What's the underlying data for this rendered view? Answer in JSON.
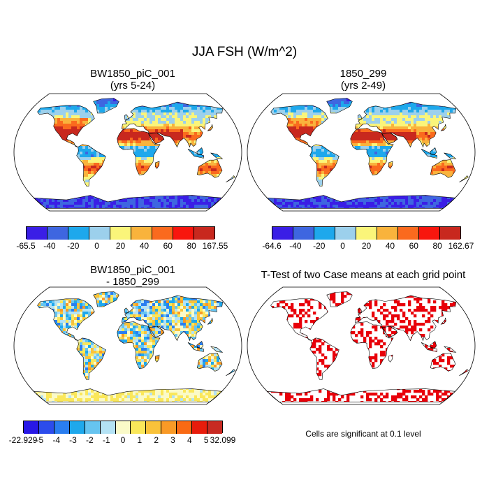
{
  "title": "JJA FSH (W/m^2)",
  "panels": [
    {
      "title_line1": "BW1850_piC_001",
      "title_line2": "(yrs 5-24)",
      "colorbar": {
        "labels": [
          "-65.5",
          "-40",
          "-20",
          "0",
          "20",
          "40",
          "60",
          "80",
          "167.55"
        ],
        "colors": [
          "#3a1ee6",
          "#3e66e0",
          "#1ea8ec",
          "#9cd0ec",
          "#faf57a",
          "#f9b33c",
          "#fa6a1e",
          "#f8160e",
          "#c8281e"
        ]
      }
    },
    {
      "title_line1": "1850_299",
      "title_line2": "(yrs 2-49)",
      "colorbar": {
        "labels": [
          "-64.6",
          "-40",
          "-20",
          "0",
          "20",
          "40",
          "60",
          "80",
          "162.67"
        ],
        "colors": [
          "#3a1ee6",
          "#3e66e0",
          "#1ea8ec",
          "#9cd0ec",
          "#faf57a",
          "#f9b33c",
          "#fa6a1e",
          "#f8160e",
          "#c8281e"
        ]
      }
    },
    {
      "title_line1": "BW1850_piC_001",
      "title_line2": "- 1850_299",
      "colorbar": {
        "labels": [
          "-22.929",
          "-5",
          "-4",
          "-3",
          "-2",
          "-1",
          "0",
          "1",
          "2",
          "3",
          "4",
          "5",
          "32.099"
        ],
        "colors": [
          "#2818e6",
          "#2c4cec",
          "#2a7ef0",
          "#1ea8ec",
          "#66c4f0",
          "#b4e2f4",
          "#fafac8",
          "#fae75a",
          "#f9c23a",
          "#f99a26",
          "#f96a14",
          "#e81c0c",
          "#c82a22"
        ]
      }
    },
    {
      "title_line1": "T-Test of two Case means at each grid point"
    }
  ],
  "note": "Cells are significant at 0.1 level",
  "colors": {
    "significant": "#e8000a",
    "coast": "#000000"
  }
}
